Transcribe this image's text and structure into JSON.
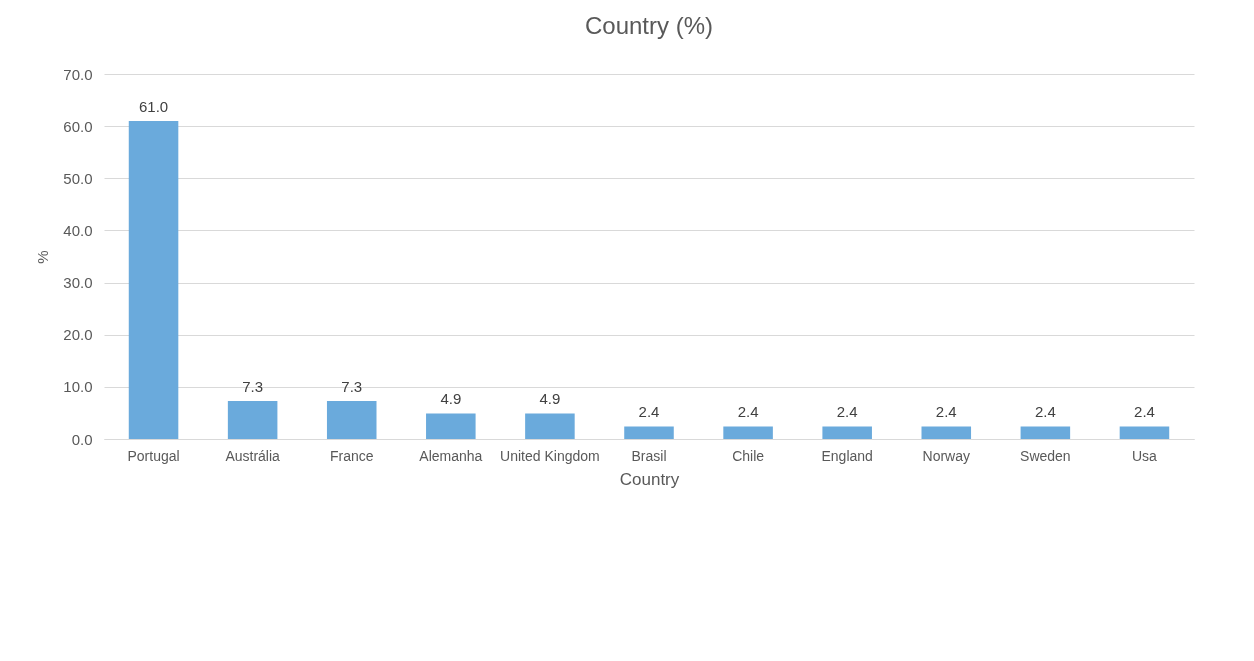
{
  "chart_data": {
    "type": "bar",
    "title": "Country (%)",
    "xlabel": "Country",
    "ylabel": "%",
    "categories": [
      "Portugal",
      "Austrália",
      "France",
      "Alemanha",
      "United Kingdom",
      "Brasil",
      "Chile",
      "England",
      "Norway",
      "Sweden",
      "Usa"
    ],
    "values": [
      61.0,
      7.3,
      7.3,
      4.9,
      4.9,
      2.4,
      2.4,
      2.4,
      2.4,
      2.4,
      2.4
    ],
    "value_labels": [
      "61.0",
      "7.3",
      "7.3",
      "4.9",
      "4.9",
      "2.4",
      "2.4",
      "2.4",
      "2.4",
      "2.4",
      "2.4"
    ],
    "color": "#6aaadc",
    "grid": "y",
    "ylim": [
      0,
      70
    ],
    "yticks": [
      {
        "value": 0,
        "label": "0.0"
      },
      {
        "value": 10,
        "label": "10.0"
      },
      {
        "value": 20,
        "label": "20.0"
      },
      {
        "value": 30,
        "label": "30.0"
      },
      {
        "value": 40,
        "label": "40.0"
      },
      {
        "value": 50,
        "label": "50.0"
      },
      {
        "value": 60,
        "label": "60.0"
      },
      {
        "value": 70,
        "label": "70.0"
      }
    ]
  }
}
